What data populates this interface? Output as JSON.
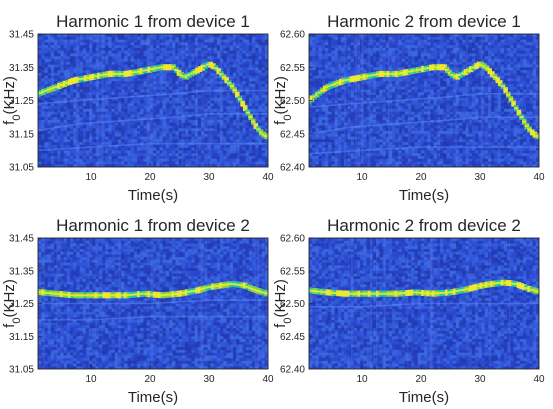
{
  "chart_data": [
    {
      "type": "heatmap",
      "title": "Harmonic 1 from device 1",
      "xlabel": "Time(s)",
      "ylabel_main": "f",
      "ylabel_sub": "0",
      "ylabel_unit": "(KHz)",
      "xlim": [
        1,
        40
      ],
      "ylim": [
        31.05,
        31.45
      ],
      "xticks": [
        10,
        20,
        30,
        40
      ],
      "yticks": [
        31.05,
        31.15,
        31.25,
        31.35,
        31.45
      ],
      "ytick_labels": [
        "31.05",
        "31.15",
        "31.25",
        "31.35",
        "31.45"
      ],
      "ridge": {
        "x": [
          1,
          4,
          7,
          10,
          13,
          16,
          19,
          22,
          24,
          25,
          26,
          28,
          30,
          31,
          32,
          33,
          34,
          35,
          36,
          37,
          38,
          39,
          40
        ],
        "y": [
          31.27,
          31.29,
          31.31,
          31.32,
          31.33,
          31.33,
          31.34,
          31.35,
          31.35,
          31.33,
          31.32,
          31.34,
          31.36,
          31.35,
          31.33,
          31.31,
          31.29,
          31.26,
          31.23,
          31.2,
          31.17,
          31.15,
          31.14
        ]
      },
      "faint_traces": [
        {
          "x": [
            1,
            8,
            16,
            24,
            30
          ],
          "y": [
            31.24,
            31.25,
            31.26,
            31.27,
            31.28
          ]
        },
        {
          "x": [
            1,
            8,
            16,
            24,
            30
          ],
          "y": [
            31.16,
            31.18,
            31.19,
            31.2,
            31.21
          ]
        },
        {
          "x": [
            1,
            10,
            20,
            30
          ],
          "y": [
            31.1,
            31.11,
            31.12,
            31.12
          ]
        }
      ]
    },
    {
      "type": "heatmap",
      "title": "Harmonic 2 from device 1",
      "xlabel": "Time(s)",
      "ylabel_main": "f",
      "ylabel_sub": "0",
      "ylabel_unit": "(KHz)",
      "xlim": [
        1,
        40
      ],
      "ylim": [
        62.4,
        62.6
      ],
      "xticks": [
        10,
        20,
        30,
        40
      ],
      "yticks": [
        62.4,
        62.45,
        62.5,
        62.55,
        62.6
      ],
      "ytick_labels": [
        "62.40",
        "62.45",
        "62.50",
        "62.55",
        "62.60"
      ],
      "ridge": {
        "x": [
          1,
          4,
          7,
          10,
          13,
          16,
          19,
          22,
          24,
          25,
          26,
          28,
          30,
          31,
          32,
          33,
          34,
          35,
          36,
          37,
          38,
          39,
          40
        ],
        "y": [
          62.5,
          62.52,
          62.53,
          62.535,
          62.54,
          62.54,
          62.545,
          62.55,
          62.55,
          62.54,
          62.535,
          62.545,
          62.555,
          62.55,
          62.54,
          62.53,
          62.52,
          62.505,
          62.49,
          62.475,
          62.46,
          62.45,
          62.445
        ]
      },
      "faint_traces": [
        {
          "x": [
            1,
            8,
            16,
            24,
            30
          ],
          "y": [
            62.49,
            62.495,
            62.5,
            62.505,
            62.51
          ]
        },
        {
          "x": [
            1,
            8,
            16,
            24,
            30
          ],
          "y": [
            62.45,
            62.46,
            62.465,
            62.47,
            62.475
          ]
        },
        {
          "x": [
            1,
            10,
            20,
            30
          ],
          "y": [
            62.42,
            62.425,
            62.43,
            62.43
          ]
        }
      ]
    },
    {
      "type": "heatmap",
      "title": "Harmonic 1 from device 2",
      "xlabel": "Time(s)",
      "ylabel_main": "f",
      "ylabel_sub": "0",
      "ylabel_unit": "(KHz)",
      "xlim": [
        1,
        40
      ],
      "ylim": [
        31.05,
        31.45
      ],
      "xticks": [
        10,
        20,
        30,
        40
      ],
      "yticks": [
        31.05,
        31.15,
        31.25,
        31.35,
        31.45
      ],
      "ytick_labels": [
        "31.05",
        "31.15",
        "31.25",
        "31.35",
        "31.45"
      ],
      "ridge": {
        "x": [
          1,
          4,
          7,
          10,
          13,
          16,
          19,
          22,
          25,
          28,
          30,
          32,
          34,
          36,
          38,
          40
        ],
        "y": [
          31.285,
          31.28,
          31.275,
          31.275,
          31.275,
          31.275,
          31.28,
          31.275,
          31.28,
          31.29,
          31.3,
          31.305,
          31.31,
          31.305,
          31.29,
          31.28
        ]
      },
      "faint_traces": [
        {
          "x": [
            1,
            10,
            20,
            30,
            40
          ],
          "y": [
            31.25,
            31.25,
            31.25,
            31.26,
            31.26
          ]
        },
        {
          "x": [
            1,
            10,
            20,
            30,
            40
          ],
          "y": [
            31.2,
            31.2,
            31.21,
            31.21,
            31.21
          ]
        }
      ]
    },
    {
      "type": "heatmap",
      "title": "Harmonic 2 from device 2",
      "xlabel": "Time(s)",
      "ylabel_main": "f",
      "ylabel_sub": "0",
      "ylabel_unit": "(KHz)",
      "xlim": [
        1,
        40
      ],
      "ylim": [
        62.4,
        62.6
      ],
      "xticks": [
        10,
        20,
        30,
        40
      ],
      "yticks": [
        62.4,
        62.45,
        62.5,
        62.55,
        62.6
      ],
      "ytick_labels": [
        "62.40",
        "62.45",
        "62.50",
        "62.55",
        "62.60"
      ],
      "ridge": {
        "x": [
          1,
          4,
          7,
          10,
          13,
          16,
          19,
          22,
          25,
          28,
          30,
          32,
          34,
          36,
          38,
          40
        ],
        "y": [
          62.52,
          62.517,
          62.515,
          62.515,
          62.515,
          62.515,
          62.517,
          62.515,
          62.517,
          62.522,
          62.527,
          62.53,
          62.532,
          62.53,
          62.523,
          62.518
        ]
      },
      "faint_traces": [
        {
          "x": [
            1,
            10,
            20,
            30,
            40
          ],
          "y": [
            62.495,
            62.495,
            62.5,
            62.5,
            62.5
          ]
        }
      ]
    }
  ],
  "colors": {
    "background_dark": "#1b2a8f",
    "background_mid": "#2c4fd8",
    "ridge_bright": "#f1ea2c",
    "ridge_mid": "#22c7a6",
    "axis": "#262626"
  }
}
